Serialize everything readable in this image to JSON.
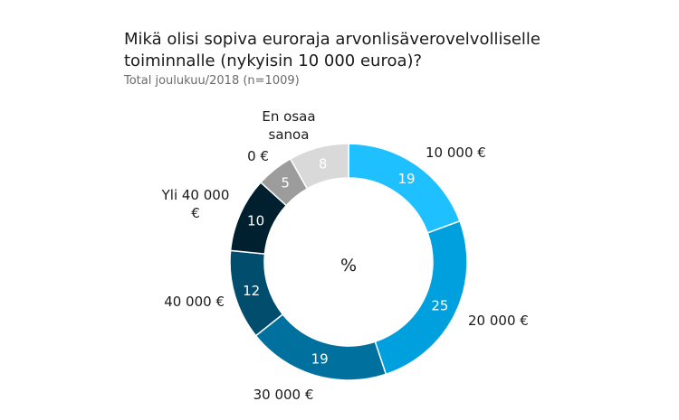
{
  "title": "Mikä olisi sopiva euroraja arvonlisäverovelvolliselle toiminnalle (nykyisin 10 000 euroa)?",
  "subtitle": "Total joulukuu/2018 (n=1009)",
  "center_label": "%",
  "chart_data": {
    "type": "pie",
    "donut": true,
    "title": "Mikä olisi sopiva euroraja arvonlisäverovelvolliselle toiminnalle (nykyisin 10 000 euroa)?",
    "subtitle": "Total joulukuu/2018 (n=1009)",
    "unit": "%",
    "slices": [
      {
        "label": "10 000 €",
        "value": 19,
        "color": "#1ec0ff"
      },
      {
        "label": "20 000 €",
        "value": 25,
        "color": "#00a0df"
      },
      {
        "label": "30 000 €",
        "value": 19,
        "color": "#00709f"
      },
      {
        "label": "40 000 €",
        "value": 12,
        "color": "#004d6e"
      },
      {
        "label": "Yli 40 000 €",
        "value": 10,
        "color": "#00202f"
      },
      {
        "label": "0 €",
        "value": 5,
        "color": "#9c9c9c"
      },
      {
        "label": "En osaa sanoa",
        "value": 8,
        "color": "#d9d9d9"
      }
    ]
  }
}
